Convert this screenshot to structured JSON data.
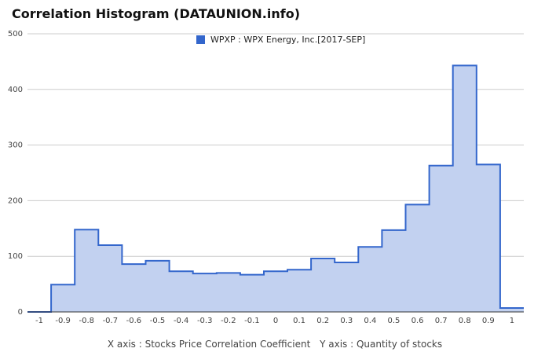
{
  "title": "Correlation Histogram (DATAUNION.info)",
  "chart_data": {
    "type": "area",
    "title": "Correlation Histogram (DATAUNION.info)",
    "xlabel": "X axis : Stocks Price Correlation Coefficient",
    "ylabel": "Y axis : Quantity of stocks",
    "xlim": [
      -1.05,
      1.05
    ],
    "ylim": [
      0,
      500
    ],
    "x_ticks": [
      "-1",
      "-0.9",
      "-0.8",
      "-0.7",
      "-0.6",
      "-0.5",
      "-0.4",
      "-0.3",
      "-0.2",
      "-0.1",
      "0",
      "0.1",
      "0.2",
      "0.3",
      "0.4",
      "0.5",
      "0.6",
      "0.7",
      "0.8",
      "0.9",
      "1"
    ],
    "y_ticks": [
      "0",
      "100",
      "200",
      "300",
      "400",
      "500"
    ],
    "grid": true,
    "legend_position": "top",
    "series": [
      {
        "name": "WPXP : WPX Energy, Inc.[2017-SEP]",
        "color": "#3366cc",
        "fill": "#c2d1f0",
        "x": [
          -1.0,
          -0.9,
          -0.8,
          -0.7,
          -0.6,
          -0.5,
          -0.4,
          -0.3,
          -0.2,
          -0.1,
          0.0,
          0.1,
          0.2,
          0.3,
          0.4,
          0.5,
          0.6,
          0.7,
          0.8,
          0.9,
          1.0
        ],
        "values": [
          0,
          49,
          148,
          120,
          86,
          92,
          73,
          69,
          70,
          67,
          73,
          76,
          96,
          89,
          117,
          147,
          193,
          263,
          443,
          265,
          7
        ]
      }
    ]
  }
}
